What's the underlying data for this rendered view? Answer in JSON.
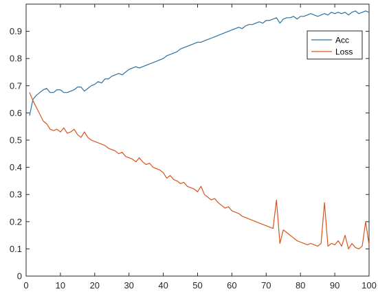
{
  "chart_data": {
    "type": "line",
    "title": "",
    "xlabel": "",
    "ylabel": "",
    "xlim": [
      0,
      100
    ],
    "ylim": [
      0,
      1
    ],
    "grid": false,
    "legend_position": "top-right",
    "x_ticks": [
      0,
      10,
      20,
      30,
      40,
      50,
      60,
      70,
      80,
      90,
      100
    ],
    "y_ticks": [
      0,
      0.1,
      0.2,
      0.3,
      0.4,
      0.5,
      0.6,
      0.7,
      0.8,
      0.9
    ],
    "x_tick_labels": [
      "0",
      "10",
      "20",
      "30",
      "40",
      "50",
      "60",
      "70",
      "80",
      "90",
      "100"
    ],
    "y_tick_labels": [
      "0",
      "0.1",
      "0.2",
      "0.3",
      "0.4",
      "0.5",
      "0.6",
      "0.7",
      "0.8",
      "0.9"
    ],
    "series": [
      {
        "name": "Acc",
        "color": "#2e6f9e",
        "x": [
          1,
          2,
          3,
          4,
          5,
          6,
          7,
          8,
          9,
          10,
          11,
          12,
          13,
          14,
          15,
          16,
          17,
          18,
          19,
          20,
          21,
          22,
          23,
          24,
          25,
          26,
          27,
          28,
          29,
          30,
          31,
          32,
          33,
          34,
          35,
          36,
          37,
          38,
          39,
          40,
          41,
          42,
          43,
          44,
          45,
          46,
          47,
          48,
          49,
          50,
          51,
          52,
          53,
          54,
          55,
          56,
          57,
          58,
          59,
          60,
          61,
          62,
          63,
          64,
          65,
          66,
          67,
          68,
          69,
          70,
          71,
          72,
          73,
          74,
          75,
          76,
          77,
          78,
          79,
          80,
          81,
          82,
          83,
          84,
          85,
          86,
          87,
          88,
          89,
          90,
          91,
          92,
          93,
          94,
          95,
          96,
          97,
          98,
          99,
          100
        ],
        "values": [
          0.59,
          0.65,
          0.665,
          0.675,
          0.685,
          0.69,
          0.675,
          0.675,
          0.685,
          0.685,
          0.675,
          0.675,
          0.68,
          0.685,
          0.695,
          0.695,
          0.68,
          0.69,
          0.7,
          0.705,
          0.715,
          0.71,
          0.725,
          0.725,
          0.735,
          0.74,
          0.745,
          0.74,
          0.75,
          0.76,
          0.765,
          0.77,
          0.765,
          0.77,
          0.775,
          0.78,
          0.785,
          0.79,
          0.795,
          0.8,
          0.81,
          0.815,
          0.82,
          0.825,
          0.835,
          0.84,
          0.845,
          0.85,
          0.855,
          0.86,
          0.86,
          0.865,
          0.87,
          0.875,
          0.88,
          0.885,
          0.89,
          0.895,
          0.9,
          0.905,
          0.91,
          0.915,
          0.91,
          0.92,
          0.925,
          0.925,
          0.93,
          0.935,
          0.93,
          0.94,
          0.94,
          0.945,
          0.95,
          0.93,
          0.945,
          0.95,
          0.95,
          0.955,
          0.945,
          0.955,
          0.955,
          0.96,
          0.965,
          0.96,
          0.955,
          0.96,
          0.965,
          0.96,
          0.97,
          0.965,
          0.97,
          0.965,
          0.97,
          0.96,
          0.97,
          0.975,
          0.965,
          0.97,
          0.975,
          0.97
        ]
      },
      {
        "name": "Loss",
        "color": "#d95319",
        "x": [
          1,
          2,
          3,
          4,
          5,
          6,
          7,
          8,
          9,
          10,
          11,
          12,
          13,
          14,
          15,
          16,
          17,
          18,
          19,
          20,
          21,
          22,
          23,
          24,
          25,
          26,
          27,
          28,
          29,
          30,
          31,
          32,
          33,
          34,
          35,
          36,
          37,
          38,
          39,
          40,
          41,
          42,
          43,
          44,
          45,
          46,
          47,
          48,
          49,
          50,
          51,
          52,
          53,
          54,
          55,
          56,
          57,
          58,
          59,
          60,
          61,
          62,
          63,
          64,
          65,
          66,
          67,
          68,
          69,
          70,
          71,
          72,
          73,
          74,
          75,
          76,
          77,
          78,
          79,
          80,
          81,
          82,
          83,
          84,
          85,
          86,
          87,
          88,
          89,
          90,
          91,
          92,
          93,
          94,
          95,
          96,
          97,
          98,
          99,
          100
        ],
        "values": [
          0.675,
          0.645,
          0.62,
          0.595,
          0.57,
          0.56,
          0.54,
          0.535,
          0.54,
          0.53,
          0.545,
          0.525,
          0.53,
          0.54,
          0.52,
          0.51,
          0.53,
          0.51,
          0.5,
          0.495,
          0.49,
          0.485,
          0.48,
          0.47,
          0.465,
          0.46,
          0.45,
          0.455,
          0.44,
          0.435,
          0.43,
          0.42,
          0.435,
          0.42,
          0.41,
          0.415,
          0.4,
          0.395,
          0.39,
          0.38,
          0.36,
          0.37,
          0.355,
          0.35,
          0.34,
          0.345,
          0.33,
          0.325,
          0.32,
          0.31,
          0.33,
          0.3,
          0.29,
          0.28,
          0.285,
          0.27,
          0.26,
          0.25,
          0.255,
          0.24,
          0.235,
          0.23,
          0.22,
          0.215,
          0.21,
          0.205,
          0.2,
          0.195,
          0.19,
          0.185,
          0.18,
          0.175,
          0.28,
          0.12,
          0.17,
          0.16,
          0.15,
          0.14,
          0.13,
          0.125,
          0.12,
          0.115,
          0.12,
          0.115,
          0.11,
          0.12,
          0.27,
          0.11,
          0.12,
          0.115,
          0.13,
          0.11,
          0.15,
          0.1,
          0.12,
          0.105,
          0.1,
          0.11,
          0.2,
          0.115
        ]
      }
    ]
  }
}
